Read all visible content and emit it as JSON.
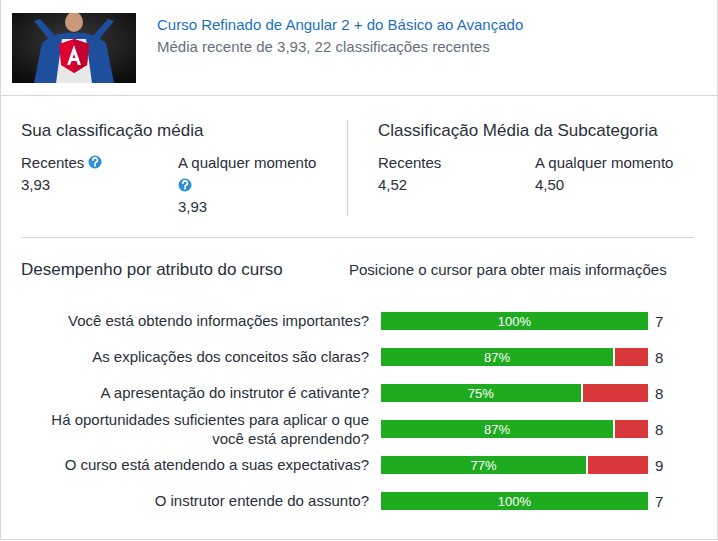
{
  "header": {
    "title": "Curso Refinado de Angular 2 + do Básico ao Avançado",
    "subtitle": "Média recente de 3,93, 22 classificações recentes"
  },
  "your_rating": {
    "title": "Sua classificação média",
    "recent": {
      "label": "Recentes",
      "value": "3,93"
    },
    "all_time": {
      "label": "A qualquer momento",
      "value": "3,93"
    }
  },
  "subcategory_rating": {
    "title": "Classificação Média da Subcategoria",
    "recent": {
      "label": "Recentes",
      "value": "4,52"
    },
    "all_time": {
      "label": "A qualquer momento",
      "value": "4,50"
    }
  },
  "performance": {
    "title": "Desempenho por atributo do curso",
    "hint": "Posicione o cursor para obter mais informações"
  },
  "chart_data": {
    "type": "bar",
    "orientation": "horizontal",
    "stacked": true,
    "data_labels": true,
    "tick_labels": "y",
    "xlim": [
      0,
      100
    ],
    "categories": [
      "Você está obtendo informações importantes?",
      "As explicações dos conceitos são claras?",
      "A apresentação do instrutor é cativante?",
      "Há oportunidades suficientes para aplicar o que você está aprendendo?",
      "O curso está atendendo a suas expectativas?",
      "O instrutor entende do assunto?"
    ],
    "series": [
      {
        "color": "#1fab1f",
        "values": [
          100,
          87,
          75,
          87,
          77,
          100
        ],
        "value_labels": [
          "100%",
          "87%",
          "75%",
          "87%",
          "77%",
          "100%"
        ]
      },
      {
        "color": "#d9383a",
        "values": [
          0,
          13,
          25,
          13,
          23,
          0
        ]
      }
    ],
    "counts": [
      7,
      8,
      8,
      8,
      9,
      7
    ]
  }
}
